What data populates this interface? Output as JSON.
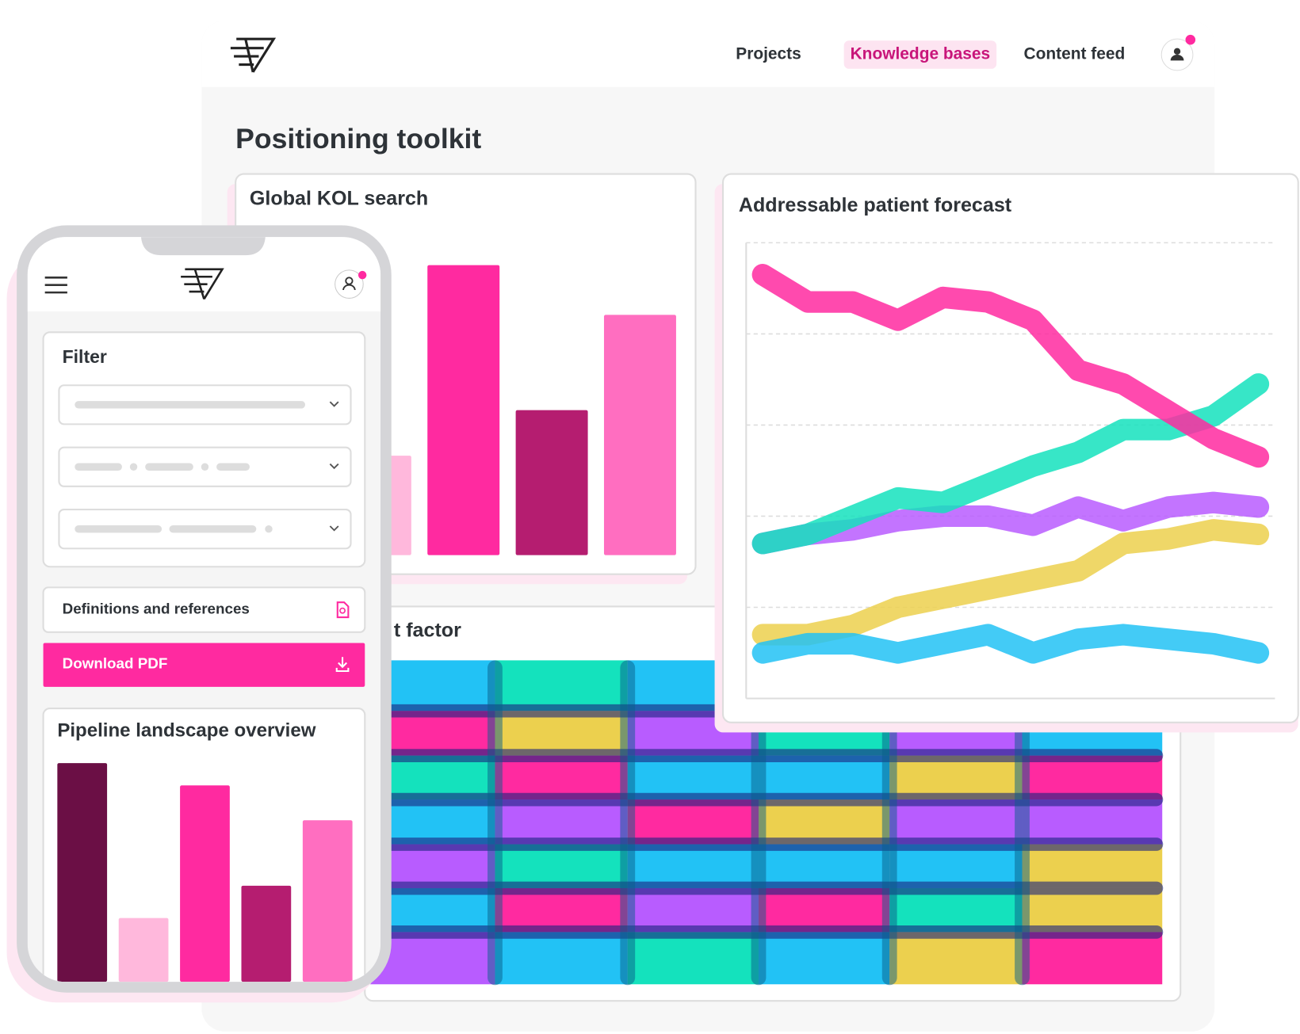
{
  "header": {
    "nav": [
      "Projects",
      "Knowledge bases",
      "Content feed"
    ]
  },
  "page_title": "Positioning toolkit",
  "heatmap_card": {
    "title": "t factor"
  },
  "mobile": {
    "filter_title": "Filter",
    "link": "Definitions and references",
    "button": "Download PDF"
  },
  "chart_data": [
    {
      "type": "bar",
      "title": "Global KOL search",
      "values": [
        120,
        350,
        175,
        290
      ],
      "colors": [
        "#ffb8dc",
        "#ff2aa0",
        "#b51d70",
        "#ff6ec0"
      ],
      "ylim": [
        0,
        400
      ]
    },
    {
      "type": "line",
      "title": "Addressable patient forecast",
      "x": [
        0,
        1,
        2,
        3,
        4,
        5,
        6,
        7,
        8,
        9,
        10,
        11
      ],
      "xlim": [
        0,
        11
      ],
      "ylim": [
        0,
        5
      ],
      "yticks": [
        1,
        2,
        3,
        4,
        5
      ],
      "grid": true,
      "series": [
        {
          "color": "#ecd04e",
          "values": [
            0.7,
            0.7,
            0.8,
            1.0,
            1.1,
            1.2,
            1.3,
            1.4,
            1.7,
            1.75,
            1.85,
            1.8
          ]
        },
        {
          "color": "#22c2f5",
          "values": [
            0.5,
            0.6,
            0.6,
            0.5,
            0.6,
            0.7,
            0.5,
            0.65,
            0.7,
            0.65,
            0.6,
            0.5
          ]
        },
        {
          "color": "#b85cff",
          "values": [
            1.7,
            1.8,
            1.85,
            1.95,
            2.0,
            2.0,
            1.9,
            2.1,
            1.95,
            2.1,
            2.15,
            2.1
          ]
        },
        {
          "color": "#14e2bd",
          "values": [
            1.7,
            1.8,
            2.0,
            2.2,
            2.15,
            2.35,
            2.55,
            2.7,
            2.95,
            2.95,
            3.1,
            3.45
          ]
        },
        {
          "color": "#ff2aa0",
          "values": [
            4.65,
            4.35,
            4.35,
            4.15,
            4.4,
            4.35,
            4.15,
            3.6,
            3.45,
            3.15,
            2.85,
            2.65
          ]
        }
      ]
    },
    {
      "type": "bar",
      "title": "Pipeline landscape overview",
      "values": [
        264,
        77,
        237,
        116,
        195
      ],
      "colors": [
        "#6b0f45",
        "#ffb8dc",
        "#ff2aa0",
        "#b51d70",
        "#ff6ec0"
      ],
      "ylim": [
        0,
        300
      ]
    }
  ]
}
